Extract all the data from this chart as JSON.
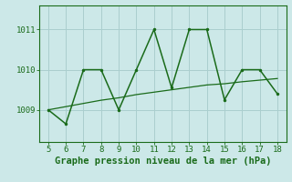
{
  "x": [
    5,
    6,
    7,
    8,
    9,
    10,
    11,
    12,
    13,
    14,
    15,
    16,
    17,
    18
  ],
  "y_main": [
    1009.0,
    1008.65,
    1010.0,
    1010.0,
    1009.0,
    1010.0,
    1011.0,
    1009.55,
    1011.0,
    1011.0,
    1009.25,
    1010.0,
    1010.0,
    1009.4
  ],
  "y_trend": [
    1009.0,
    1009.08,
    1009.16,
    1009.24,
    1009.3,
    1009.38,
    1009.44,
    1009.5,
    1009.56,
    1009.62,
    1009.65,
    1009.7,
    1009.74,
    1009.78
  ],
  "line_color": "#1a6b1a",
  "bg_color": "#cce8e8",
  "grid_color": "#aacece",
  "axis_color": "#1a6b1a",
  "text_color": "#1a6b1a",
  "xlabel": "Graphe pression niveau de la mer (hPa)",
  "yticks": [
    1009,
    1010,
    1011
  ],
  "xlim": [
    4.5,
    18.5
  ],
  "ylim": [
    1008.2,
    1011.6
  ],
  "xlabel_fontsize": 7.5,
  "tick_fontsize": 6.5
}
